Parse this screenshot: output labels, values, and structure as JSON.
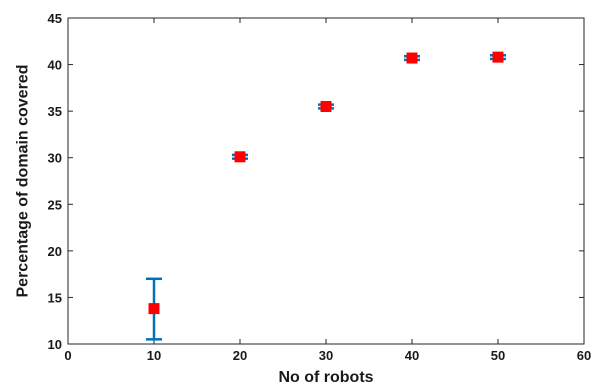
{
  "chart_data": {
    "type": "scatter",
    "title": "",
    "xlabel": "No of robots",
    "ylabel": "Percentage of domain covered",
    "xlim": [
      0,
      60
    ],
    "ylim": [
      10,
      45
    ],
    "xticks": [
      0,
      10,
      20,
      30,
      40,
      50,
      60
    ],
    "yticks": [
      10,
      15,
      20,
      25,
      30,
      35,
      40,
      45
    ],
    "grid": false,
    "legend": "none",
    "series": [
      {
        "x": [
          10,
          20,
          30,
          40,
          50
        ],
        "y": [
          13.8,
          30.1,
          35.5,
          40.7,
          40.8
        ],
        "err_low": [
          10.5,
          29.9,
          35.3,
          40.5,
          40.6
        ],
        "err_high": [
          17.0,
          30.3,
          35.7,
          40.9,
          41.0
        ]
      }
    ],
    "colors": {
      "marker": "#ff0000",
      "errorbar": "#0072bd",
      "axis": "#262626"
    }
  }
}
